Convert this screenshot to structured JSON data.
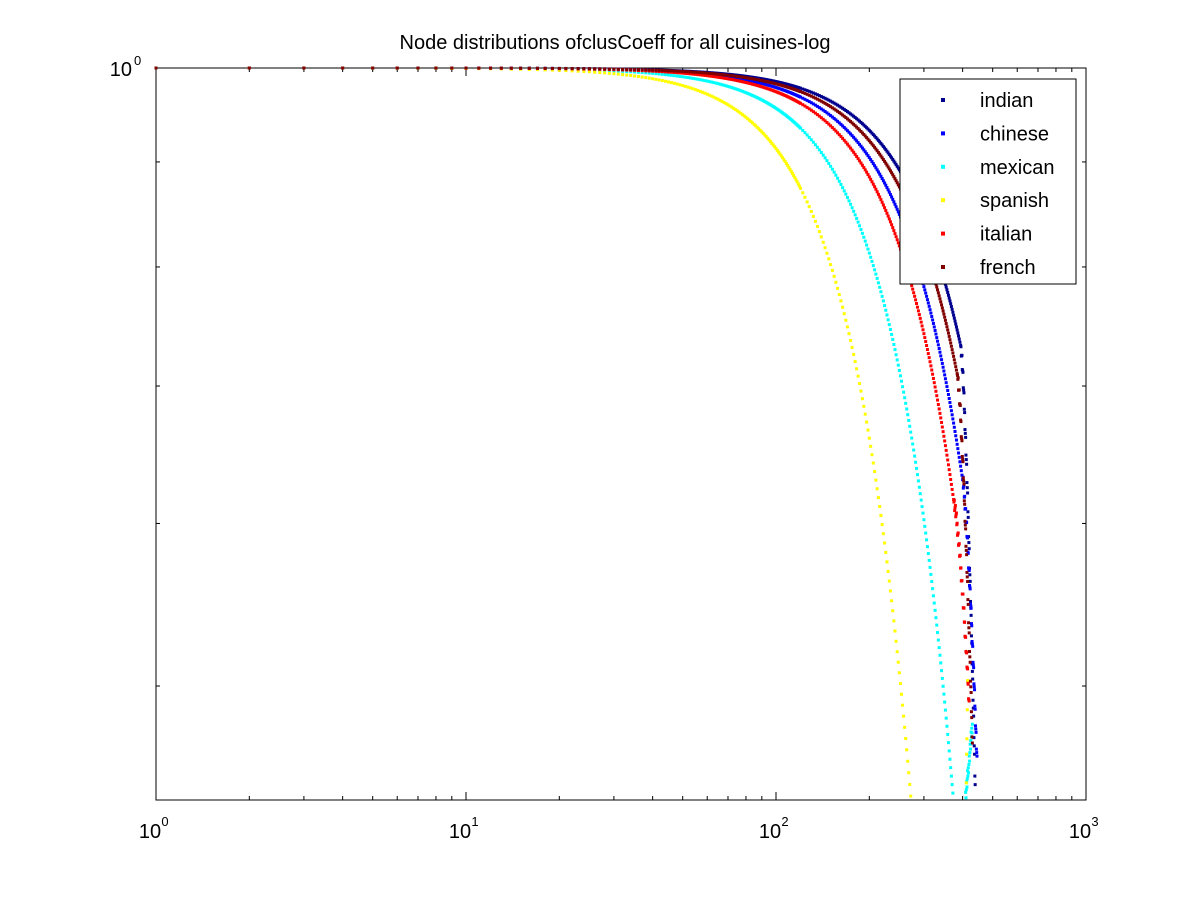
{
  "chart_data": {
    "type": "scatter",
    "title": "Node distributions ofclusCoeff for all cuisines-log",
    "xscale": "log",
    "yscale": "log",
    "xlim": [
      1,
      1000
    ],
    "ylim": [
      0.44,
      1.0
    ],
    "x_ticks": [
      {
        "base": "10",
        "exp": "0"
      },
      {
        "base": "10",
        "exp": "1"
      },
      {
        "base": "10",
        "exp": "2"
      },
      {
        "base": "10",
        "exp": "3"
      }
    ],
    "y_ticks": [
      {
        "base": "10",
        "exp": "0"
      }
    ],
    "legend_position": "top-right",
    "grid": false,
    "series": [
      {
        "name": "indian",
        "color": "#00008f",
        "n_max": 440,
        "k": 150,
        "alpha": 0.3,
        "drop": 0.44
      },
      {
        "name": "chinese",
        "color": "#0000ff",
        "n_max": 445,
        "k": 145,
        "alpha": 0.4,
        "drop": 0.46
      },
      {
        "name": "mexican",
        "color": "#00ffff",
        "n_max": 430,
        "k": 130,
        "alpha": 0.65,
        "drop": 0.48
      },
      {
        "name": "spanish",
        "color": "#ffff00",
        "n_max": 415,
        "k": 110,
        "alpha": 0.9,
        "drop": 0.5
      },
      {
        "name": "italian",
        "color": "#ff0000",
        "n_max": 420,
        "k": 140,
        "alpha": 0.45,
        "drop": 0.49
      },
      {
        "name": "french",
        "color": "#800000",
        "n_max": 430,
        "k": 150,
        "alpha": 0.35,
        "drop": 0.47
      }
    ]
  }
}
